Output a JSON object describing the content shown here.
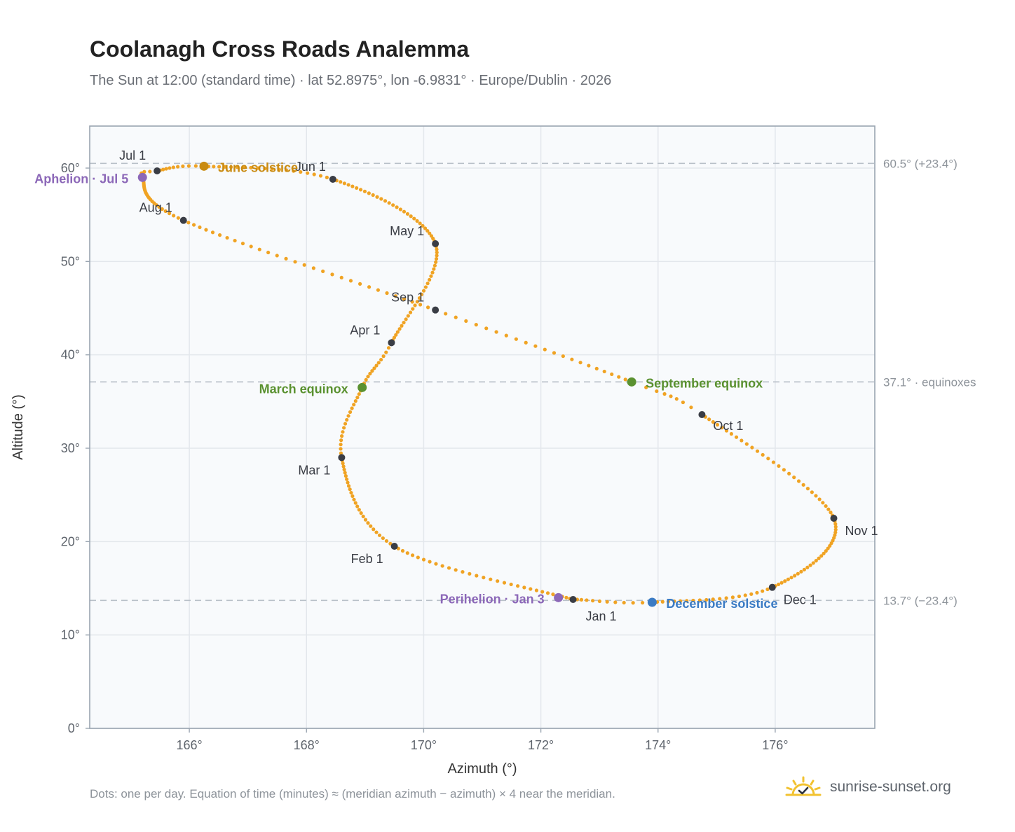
{
  "header": {
    "title": "Coolanagh Cross Roads Analemma",
    "subtitle": "The Sun at 12:00 (standard time) · lat 52.8975°, lon -6.9831° · Europe/Dublin · 2026"
  },
  "footer": {
    "note": "Dots: one per day. Equation of time (minutes) ≈ (meridian azimuth − azimuth) × 4 near the meridian.",
    "brand": "sunrise-sunset.org",
    "brand_icon": "sun-check-icon"
  },
  "colors": {
    "path": "#f0a323",
    "month_marker": "#3a3d45",
    "solstice_june": "#c98b12",
    "solstice_december": "#3b7bc4",
    "equinox": "#5a9130",
    "apsis": "#8c68b8",
    "reference_line": "#b8c0c8",
    "plot_bg": "#f8fafc",
    "plot_border": "#9aa5b1",
    "grid": "#e3e7ec"
  },
  "chart_data": {
    "type": "scatter",
    "xlabel": "Azimuth (°)",
    "ylabel": "Altitude (°)",
    "xlim": [
      164.3,
      177.7
    ],
    "ylim": [
      0,
      64.5
    ],
    "xticks": [
      166,
      168,
      170,
      172,
      174,
      176
    ],
    "yticks": [
      0,
      10,
      20,
      30,
      40,
      50,
      60
    ],
    "xtick_labels": [
      "166°",
      "168°",
      "170°",
      "172°",
      "174°",
      "176°"
    ],
    "ytick_labels": [
      "0°",
      "10°",
      "20°",
      "30°",
      "40°",
      "50°",
      "60°"
    ],
    "grid": true,
    "series_note": "one dot per day, 365 days, sun position at 12:00 standard time",
    "daily_path_keypoints": [
      {
        "doy": 1,
        "az": 172.55,
        "alt": 13.8
      },
      {
        "doy": 32,
        "az": 169.5,
        "alt": 19.5
      },
      {
        "doy": 60,
        "az": 168.6,
        "alt": 29.0
      },
      {
        "doy": 78,
        "az": 168.95,
        "alt": 36.5
      },
      {
        "doy": 91,
        "az": 169.45,
        "alt": 41.3
      },
      {
        "doy": 121,
        "az": 170.2,
        "alt": 51.9
      },
      {
        "doy": 152,
        "az": 168.45,
        "alt": 58.8
      },
      {
        "doy": 172,
        "az": 166.25,
        "alt": 60.2
      },
      {
        "doy": 182,
        "az": 165.45,
        "alt": 59.7
      },
      {
        "doy": 186,
        "az": 165.2,
        "alt": 59.0
      },
      {
        "doy": 213,
        "az": 165.9,
        "alt": 54.4
      },
      {
        "doy": 244,
        "az": 170.2,
        "alt": 44.8
      },
      {
        "doy": 266,
        "az": 173.55,
        "alt": 37.1
      },
      {
        "doy": 274,
        "az": 174.75,
        "alt": 33.6
      },
      {
        "doy": 305,
        "az": 177.0,
        "alt": 22.5
      },
      {
        "doy": 335,
        "az": 175.95,
        "alt": 15.1
      },
      {
        "doy": 355,
        "az": 173.9,
        "alt": 13.5
      },
      {
        "doy": 365,
        "az": 172.62,
        "alt": 13.8
      }
    ],
    "month_markers": [
      {
        "label": "Jan 1",
        "az": 172.55,
        "alt": 13.8
      },
      {
        "label": "Feb 1",
        "az": 169.5,
        "alt": 19.5
      },
      {
        "label": "Mar 1",
        "az": 168.6,
        "alt": 29.0
      },
      {
        "label": "Apr 1",
        "az": 169.45,
        "alt": 41.3
      },
      {
        "label": "May 1",
        "az": 170.2,
        "alt": 51.9
      },
      {
        "label": "Jun 1",
        "az": 168.45,
        "alt": 58.8
      },
      {
        "label": "Jul 1",
        "az": 165.45,
        "alt": 59.7
      },
      {
        "label": "Aug 1",
        "az": 165.9,
        "alt": 54.4
      },
      {
        "label": "Sep 1",
        "az": 170.2,
        "alt": 44.8
      },
      {
        "label": "Oct 1",
        "az": 174.75,
        "alt": 33.6
      },
      {
        "label": "Nov 1",
        "az": 177.0,
        "alt": 22.5
      },
      {
        "label": "Dec 1",
        "az": 175.95,
        "alt": 15.1
      }
    ],
    "events": [
      {
        "label": "June solstice",
        "az": 166.25,
        "alt": 60.2,
        "kind": "solstice_june"
      },
      {
        "label": "December solstice",
        "az": 173.9,
        "alt": 13.5,
        "kind": "solstice_december"
      },
      {
        "label": "March equinox",
        "az": 168.95,
        "alt": 36.5,
        "kind": "equinox"
      },
      {
        "label": "September equinox",
        "az": 173.55,
        "alt": 37.1,
        "kind": "equinox"
      },
      {
        "label": "Aphelion · Jul 5",
        "az": 165.2,
        "alt": 59.0,
        "kind": "apsis"
      },
      {
        "label": "Perihelion · Jan 3",
        "az": 172.3,
        "alt": 14.0,
        "kind": "apsis"
      }
    ],
    "reference_lines": [
      {
        "alt": 60.5,
        "label": "60.5° (+23.4°)"
      },
      {
        "alt": 37.1,
        "label": "37.1° · equinoxes"
      },
      {
        "alt": 13.7,
        "label": "13.7° (−23.4°)"
      }
    ]
  }
}
